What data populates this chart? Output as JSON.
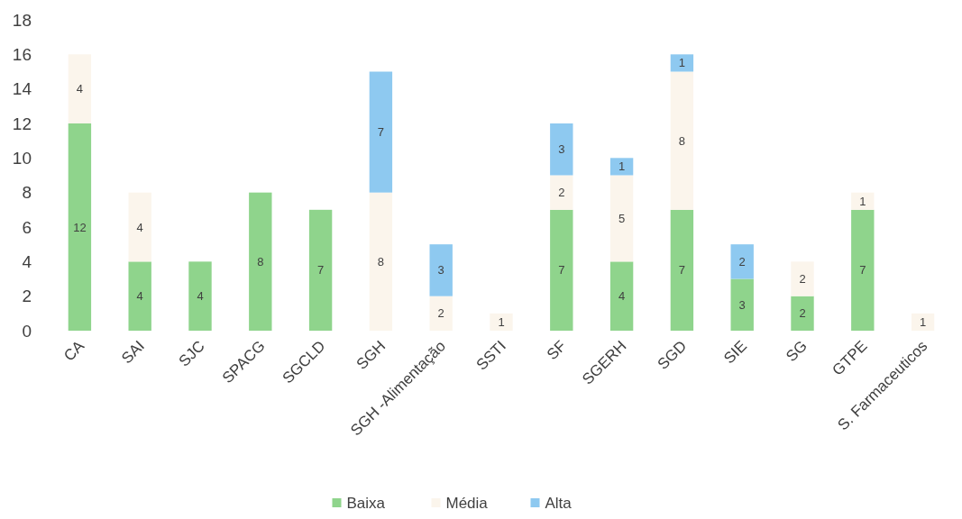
{
  "chart_data": {
    "type": "bar",
    "stacked": true,
    "data_labels": true,
    "legend": "bottom",
    "grid": false,
    "categories": [
      "CA",
      "SAI",
      "SJC",
      "SPACG",
      "SGCLD",
      "SGH",
      "SGH -Alimentação",
      "SSTI",
      "SF",
      "SGERH",
      "SGD",
      "SIE",
      "SG",
      "GTPE",
      "S. Farmaceuticos"
    ],
    "series": [
      {
        "name": "Baixa",
        "color": "#8fd48c",
        "values": [
          12,
          4,
          4,
          8,
          7,
          null,
          null,
          null,
          7,
          4,
          7,
          3,
          2,
          7,
          null
        ]
      },
      {
        "name": "Média",
        "color": "#fbf5ec",
        "values": [
          4,
          4,
          null,
          null,
          null,
          8,
          2,
          1,
          2,
          5,
          8,
          null,
          2,
          1,
          1
        ]
      },
      {
        "name": "Alta",
        "color": "#8ec9f0",
        "values": [
          null,
          null,
          null,
          null,
          null,
          7,
          3,
          null,
          3,
          1,
          1,
          2,
          null,
          null,
          null
        ]
      }
    ],
    "ylim": [
      0,
      18
    ],
    "yticks": [
      0,
      2,
      4,
      6,
      8,
      10,
      12,
      14,
      16,
      18
    ]
  }
}
